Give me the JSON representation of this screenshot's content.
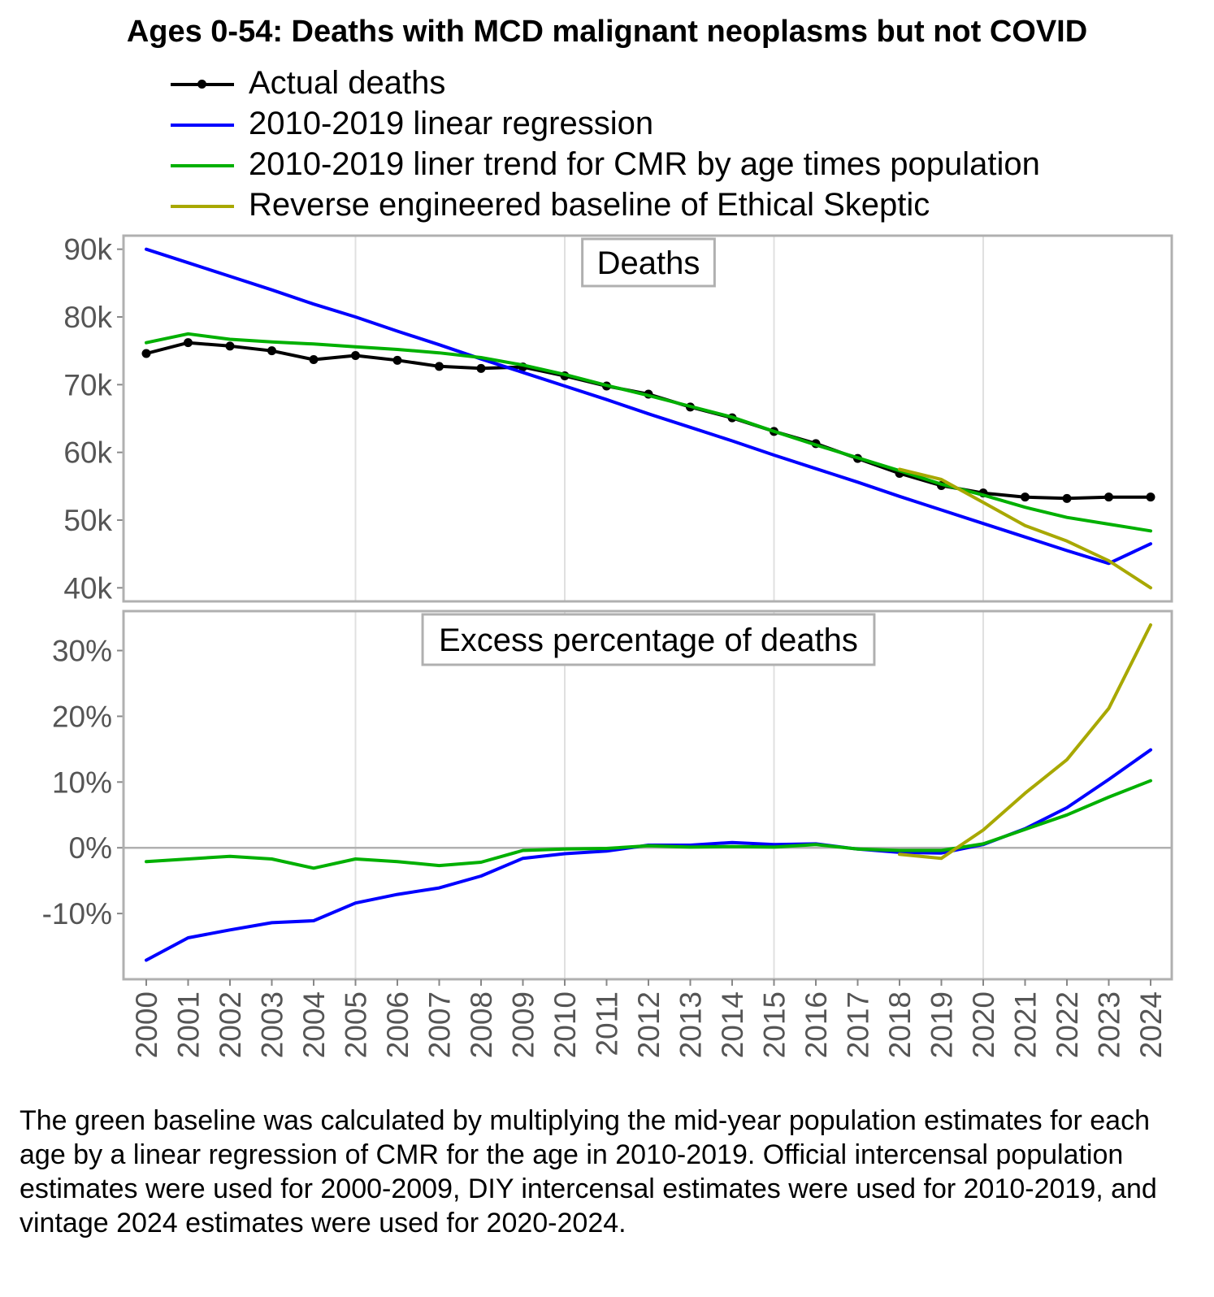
{
  "title": "Ages 0-54: Deaths with MCD malignant neoplasms but not COVID",
  "legend": [
    {
      "label": "Actual deaths",
      "color": "#000000",
      "marker": true
    },
    {
      "label": "2010-2019 linear regression",
      "color": "#0000ff",
      "marker": false
    },
    {
      "label": "2010-2019 liner trend for CMR by age times population",
      "color": "#00b000",
      "marker": false
    },
    {
      "label": "Reverse engineered baseline of Ethical Skeptic",
      "color": "#a8a800",
      "marker": false
    }
  ],
  "chart_data": [
    {
      "type": "line",
      "facet_label": "Deaths",
      "x": [
        2000,
        2001,
        2002,
        2003,
        2004,
        2005,
        2006,
        2007,
        2008,
        2009,
        2010,
        2011,
        2012,
        2013,
        2014,
        2015,
        2016,
        2017,
        2018,
        2019,
        2020,
        2021,
        2022,
        2023,
        2024
      ],
      "ylim": [
        38000,
        92000
      ],
      "y_ticks": [
        40000,
        50000,
        60000,
        70000,
        80000,
        90000
      ],
      "y_tick_labels": [
        "40k",
        "50k",
        "60k",
        "70k",
        "80k",
        "90k"
      ],
      "series": [
        {
          "name": "Actual deaths",
          "color": "#000000",
          "markers": true,
          "values": [
            74600,
            76200,
            75700,
            75000,
            73700,
            74300,
            73600,
            72700,
            72400,
            72600,
            71300,
            69800,
            68600,
            66700,
            65100,
            63100,
            61300,
            59100,
            56900,
            55100,
            54000,
            53400,
            53200,
            53400,
            53400
          ]
        },
        {
          "name": "2010-2019 linear regression",
          "color": "#0000ff",
          "markers": false,
          "values": [
            90000,
            88000,
            86000,
            84000,
            81900,
            80000,
            77900,
            75900,
            73800,
            71800,
            69800,
            67800,
            65700,
            63700,
            61700,
            59600,
            57600,
            55600,
            53500,
            51500,
            49500,
            47500,
            45500,
            43600,
            46500
          ]
        },
        {
          "name": "2010-2019 liner trend for CMR by age times population",
          "color": "#00b000",
          "markers": false,
          "values": [
            76200,
            77500,
            76700,
            76300,
            76000,
            75600,
            75200,
            74700,
            74000,
            72900,
            71500,
            69900,
            68400,
            66800,
            65200,
            63100,
            61100,
            59200,
            57300,
            55300,
            53700,
            51900,
            50400,
            49400,
            48400
          ]
        },
        {
          "name": "Reverse engineered baseline of Ethical Skeptic",
          "color": "#a8a800",
          "markers": false,
          "values": [
            null,
            null,
            null,
            null,
            null,
            null,
            null,
            null,
            null,
            null,
            null,
            null,
            null,
            null,
            null,
            null,
            null,
            null,
            57500,
            56000,
            52600,
            49200,
            46900,
            44000,
            40000
          ]
        }
      ]
    },
    {
      "type": "line",
      "facet_label": "Excess percentage of deaths",
      "x": [
        2000,
        2001,
        2002,
        2003,
        2004,
        2005,
        2006,
        2007,
        2008,
        2009,
        2010,
        2011,
        2012,
        2013,
        2014,
        2015,
        2016,
        2017,
        2018,
        2019,
        2020,
        2021,
        2022,
        2023,
        2024
      ],
      "ylim": [
        -20,
        36
      ],
      "y_ticks": [
        -10,
        0,
        10,
        20,
        30
      ],
      "y_tick_labels": [
        "-10%",
        "0%",
        "10%",
        "20%",
        "30%"
      ],
      "series": [
        {
          "name": "2010-2019 linear regression",
          "color": "#0000ff",
          "markers": false,
          "values": [
            -17.1,
            -13.7,
            -12.5,
            -11.4,
            -11.1,
            -8.4,
            -7.1,
            -6.1,
            -4.3,
            -1.6,
            -0.9,
            -0.5,
            0.4,
            0.4,
            0.8,
            0.5,
            0.6,
            -0.2,
            -0.7,
            -0.8,
            0.5,
            2.9,
            6.1,
            10.4,
            14.9
          ]
        },
        {
          "name": "2010-2019 liner trend for CMR by age times population",
          "color": "#00b000",
          "markers": false,
          "values": [
            -2.1,
            -1.7,
            -1.3,
            -1.7,
            -3.1,
            -1.7,
            -2.1,
            -2.7,
            -2.2,
            -0.4,
            -0.2,
            -0.1,
            0.3,
            0.1,
            0.2,
            0.1,
            0.5,
            -0.2,
            -0.4,
            -0.4,
            0.6,
            2.8,
            5.0,
            7.7,
            10.2
          ]
        },
        {
          "name": "Reverse engineered baseline of Ethical Skeptic",
          "color": "#a8a800",
          "markers": false,
          "values": [
            null,
            null,
            null,
            null,
            null,
            null,
            null,
            null,
            null,
            null,
            null,
            null,
            null,
            null,
            null,
            null,
            null,
            null,
            -1.0,
            -1.6,
            2.7,
            8.3,
            13.4,
            21.2,
            33.9
          ]
        }
      ]
    }
  ],
  "footnote": "The green baseline was calculated by multiplying the mid-year population estimates for each age by a linear regression of CMR for the age in 2010-2019. Official intercensal population estimates were used for 2000-2009, DIY intercensal estimates were used for 2010-2019, and vintage 2024 estimates were used for 2020-2024."
}
